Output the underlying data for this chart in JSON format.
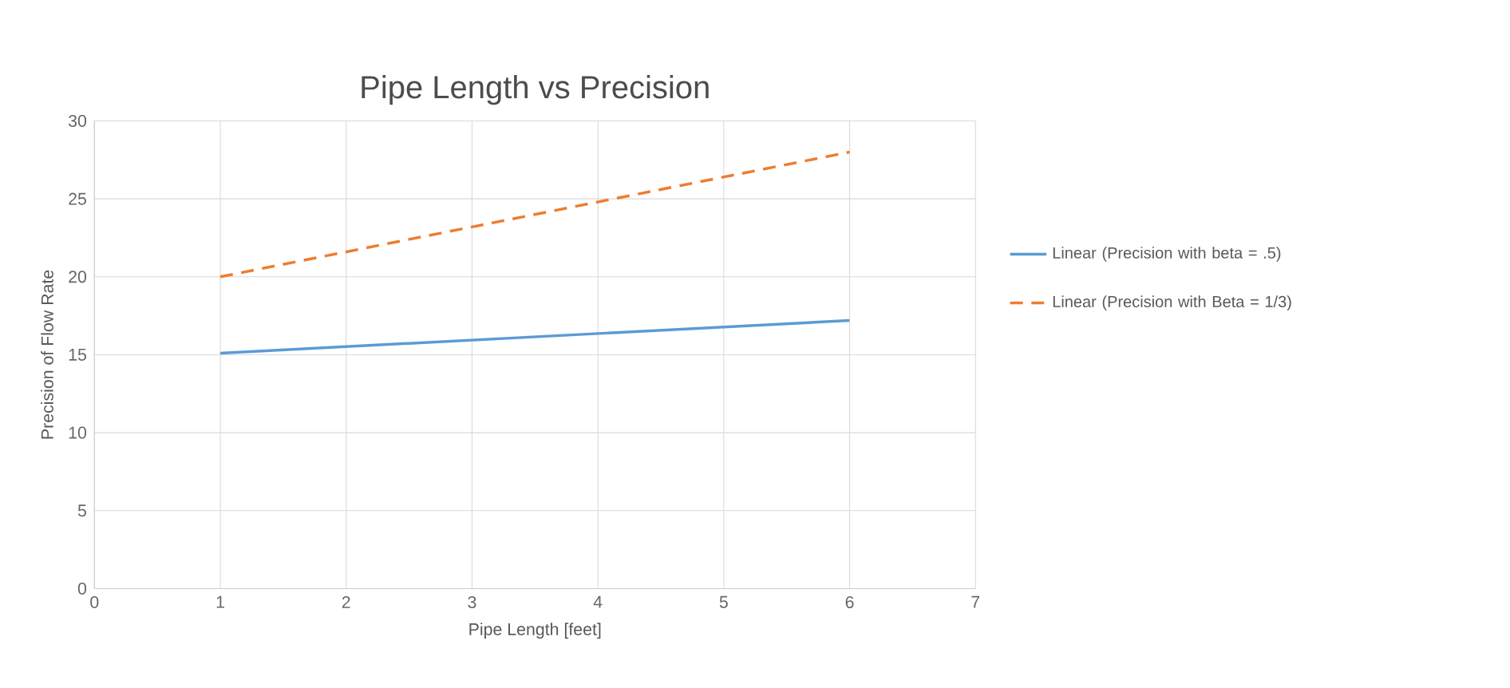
{
  "chart_data": {
    "type": "line",
    "title": "Pipe Length vs Precision",
    "xlabel": "Pipe Length  [feet]",
    "ylabel": "Precision of Flow Rate",
    "x": [
      1,
      6
    ],
    "series": [
      {
        "name": "Linear (Precision with beta = .5)",
        "color": "#5b9bd5",
        "line_style": "solid",
        "values": [
          15.1,
          17.2
        ]
      },
      {
        "name": "Linear (Precision with Beta = 1/3)",
        "color": "#ed7d31",
        "line_style": "dashed",
        "values": [
          20,
          28
        ]
      }
    ],
    "xlim": [
      0,
      7
    ],
    "xticks": [
      0,
      1,
      2,
      3,
      4,
      5,
      6,
      7
    ],
    "ylim": [
      0,
      30
    ],
    "yticks": [
      0,
      5,
      10,
      15,
      20,
      25,
      30
    ],
    "grid": true,
    "legend": "right",
    "marker": "none"
  }
}
